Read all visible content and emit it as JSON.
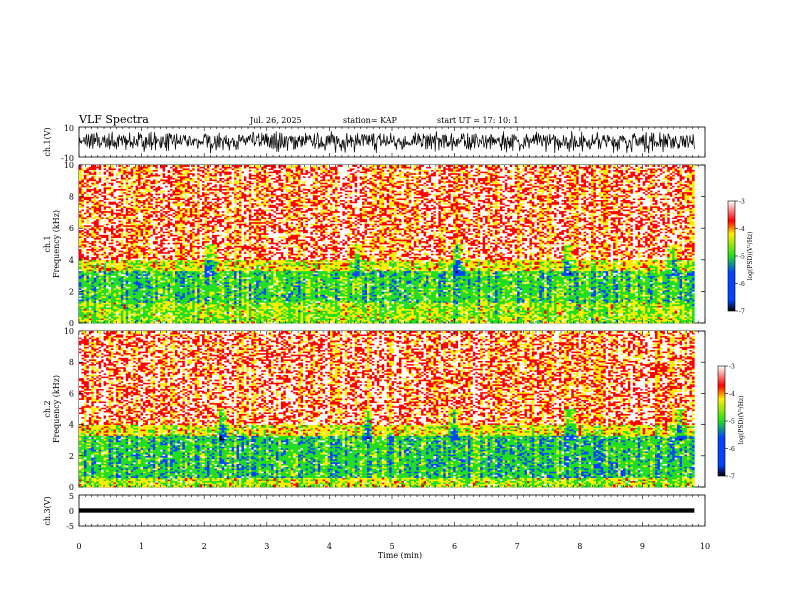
{
  "header": {
    "title": "VLF Spectra",
    "date": "Jul. 26, 2025",
    "station": "station= KAP",
    "start": "start UT =  17: 10: 1"
  },
  "colors": {
    "high": "#ff0000",
    "mid_high": "#ffee00",
    "mid": "#22dd22",
    "low": "#0044ff",
    "bottom": "#000000"
  },
  "chart_data": [
    {
      "type": "line",
      "name": "ch1-waveform",
      "ylabel": "ch.1(V)",
      "ylim": [
        -10,
        10
      ],
      "yticks": [
        "10",
        "-10"
      ],
      "xlim": [
        0,
        9.83
      ],
      "x_step_min": 0.01,
      "approx_values": [
        5.2,
        -2.0,
        3.5,
        6.8,
        -6.0,
        1.2,
        4.9,
        -3.8,
        2.3,
        0.1,
        -7.5,
        3.3,
        5.4,
        -1.6,
        2.9,
        7.2,
        -4.4,
        -0.2,
        5.7,
        -5.2,
        1.9,
        6.3,
        -2.7,
        0.8,
        4.1,
        -6.7,
        3.0,
        -1.1,
        5.9,
        2.0,
        -3.3,
        6.6,
        0.5,
        -5.6,
        4.3,
        1.7,
        -2.4,
        7.0,
        -0.9,
        3.8,
        -6.1,
        2.6,
        5.1,
        -3.6,
        0.3,
        6.1,
        -4.8,
        1.5,
        4.6,
        -2.1
      ]
    },
    {
      "type": "heatmap",
      "name": "ch1-spectrogram",
      "ylabel_lines": [
        "ch.1",
        "Frequency (kHz)"
      ],
      "ylim": [
        0,
        10
      ],
      "yticks": [
        "0",
        "2",
        "4",
        "6",
        "8",
        "10"
      ],
      "xlim": [
        0,
        9.83
      ],
      "colorbar": {
        "range": [
          -7,
          -3
        ],
        "ticks": [
          "-3",
          "-4",
          "-5",
          "-6",
          "-7"
        ],
        "label": "log(PSD)(V²/Hz)"
      },
      "dominant_levels": [
        {
          "band_khz": [
            4,
            10
          ],
          "level": -3.2
        },
        {
          "band_khz": [
            3.3,
            4
          ],
          "level": -3.9
        },
        {
          "band_khz": [
            1.3,
            3.3
          ],
          "level": -4.6
        },
        {
          "band_khz": [
            0,
            1.3
          ],
          "level": -4.2
        }
      ],
      "notches_min": [
        2.1,
        4.45,
        6.05,
        7.8,
        9.5
      ]
    },
    {
      "type": "heatmap",
      "name": "ch2-spectrogram",
      "ylabel_lines": [
        "ch.2",
        "Frequency (kHz)"
      ],
      "ylim": [
        0,
        10
      ],
      "yticks": [
        "0",
        "2",
        "4",
        "6",
        "8",
        "10"
      ],
      "xlim": [
        0,
        9.83
      ],
      "colorbar": {
        "range": [
          -7,
          -3
        ],
        "ticks": [
          "-3",
          "-4",
          "-5",
          "-6",
          "-7"
        ],
        "label": "log(PSD)(V²/Hz)"
      },
      "dominant_levels": [
        {
          "band_khz": [
            4,
            10
          ],
          "level": -3.2
        },
        {
          "band_khz": [
            3.3,
            4
          ],
          "level": -3.9
        },
        {
          "band_khz": [
            0.6,
            3.3
          ],
          "level": -4.7
        },
        {
          "band_khz": [
            0,
            0.6
          ],
          "level": -4.1
        }
      ],
      "notches_min": [
        2.3,
        4.6,
        6.0,
        7.85,
        9.6
      ]
    },
    {
      "type": "line",
      "name": "ch3-waveform",
      "ylabel": "ch.3(V)",
      "ylim": [
        -5,
        5
      ],
      "yticks": [
        "5",
        "0",
        "-5"
      ],
      "xlim": [
        0,
        9.83
      ],
      "band": [
        -0.7,
        0.7
      ]
    }
  ],
  "xaxis": {
    "label": "Time (min)",
    "ticks": [
      "0",
      "1",
      "2",
      "3",
      "4",
      "5",
      "6",
      "7",
      "8",
      "9",
      "10"
    ]
  }
}
